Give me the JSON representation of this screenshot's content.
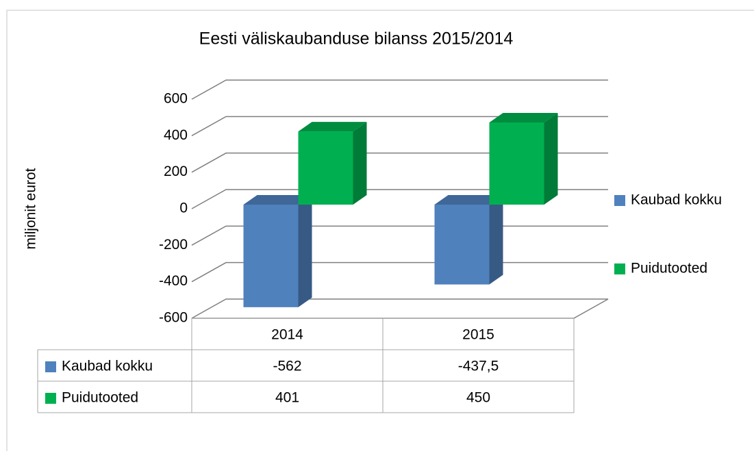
{
  "chart_data": {
    "type": "bar3d",
    "title": "Eesti väliskaubanduse bilanss 2015/2014",
    "y_label": "miljonit eurot",
    "categories": [
      "2014",
      "2015"
    ],
    "series": [
      {
        "name": "Kaubad kokku",
        "color": "#4f81bd",
        "values": [
          -562,
          -437.5
        ],
        "value_labels": [
          "-562",
          "-437,5"
        ]
      },
      {
        "name": "Puidutooted",
        "color": "#00b050",
        "values": [
          401,
          450
        ]
      }
    ],
    "ylim": [
      -600,
      600
    ],
    "yticks": [
      -600,
      -400,
      -200,
      0,
      200,
      400,
      600
    ],
    "grid": true,
    "legend": "right",
    "data_table": true
  }
}
